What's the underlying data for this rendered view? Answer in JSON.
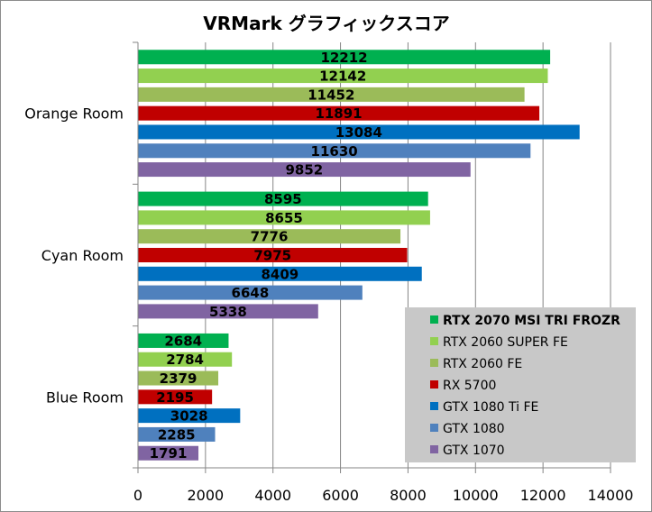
{
  "chart_data": {
    "type": "bar",
    "orientation": "horizontal",
    "title": "VRMark グラフィックスコア",
    "categories": [
      "Orange Room",
      "Cyan Room",
      "Blue Room"
    ],
    "series": [
      {
        "name": "RTX 2070 MSI TRI FROZR",
        "color": "#00b050",
        "values": [
          12212,
          8595,
          2684
        ]
      },
      {
        "name": "RTX 2060 SUPER FE",
        "color": "#92d050",
        "values": [
          12142,
          8655,
          2784
        ]
      },
      {
        "name": "RTX 2060 FE",
        "color": "#9bbb59",
        "values": [
          11452,
          7776,
          2379
        ]
      },
      {
        "name": "RX 5700",
        "color": "#c00000",
        "values": [
          11891,
          7975,
          2195
        ]
      },
      {
        "name": "GTX 1080 Ti FE",
        "color": "#0070c0",
        "values": [
          13084,
          8409,
          3028
        ]
      },
      {
        "name": "GTX 1080",
        "color": "#4f81bd",
        "values": [
          11630,
          6648,
          2285
        ]
      },
      {
        "name": "GTX 1070",
        "color": "#8064a2",
        "values": [
          9852,
          5338,
          1791
        ]
      }
    ],
    "xlim": [
      0,
      14000
    ],
    "xticks": [
      0,
      2000,
      4000,
      6000,
      8000,
      10000,
      12000,
      14000
    ],
    "grid": true,
    "legend_position": "bottom-right",
    "legend_bold_entry": 0,
    "data_labels": true
  }
}
